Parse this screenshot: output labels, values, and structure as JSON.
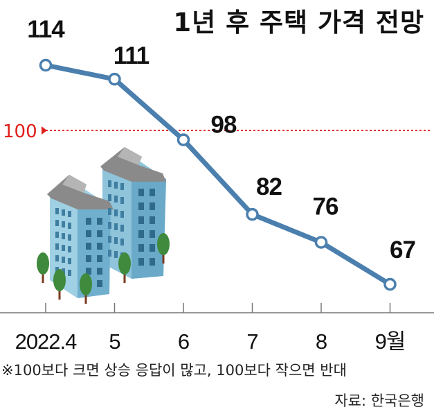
{
  "chart_data": {
    "type": "line",
    "title": "1년 후 주택 가격 전망",
    "categories": [
      "2022.4",
      "5",
      "6",
      "7",
      "8",
      "9월"
    ],
    "series": [
      {
        "values": [
          114,
          111,
          98,
          82,
          76,
          67
        ]
      }
    ],
    "value_labels": [
      "114",
      "111",
      "98",
      "82",
      "76",
      "67"
    ],
    "reference_line": {
      "value": 100,
      "label": "100",
      "color": "#e0201c"
    },
    "ylim": [
      55,
      125
    ],
    "line_color": "#4a7fae",
    "grid": false
  },
  "note": "※100보다 크면 상승 응답이 많고, 100보다 작으면 반대",
  "source": "자료: 한국은행"
}
